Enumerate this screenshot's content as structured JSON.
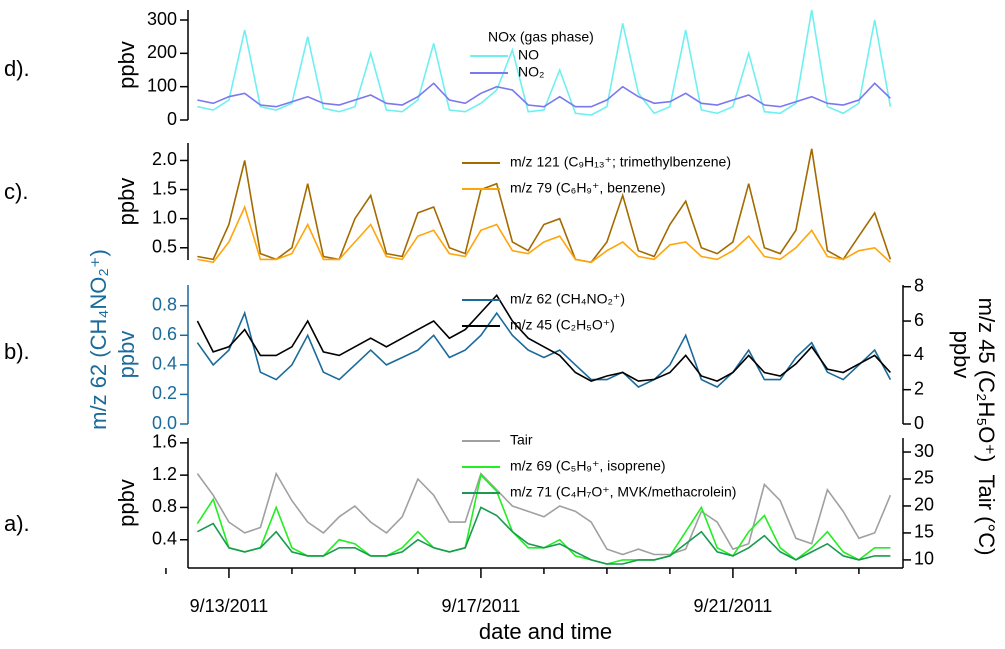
{
  "chart_data": [
    {
      "type": "line",
      "panel_label": "d).",
      "ylabel": "ppbv",
      "legend_title": "NOx (gas phase)",
      "x": [
        12.5,
        12.75,
        13,
        13.25,
        13.5,
        13.75,
        14,
        14.25,
        14.5,
        14.75,
        15,
        15.25,
        15.5,
        15.75,
        16,
        16.25,
        16.5,
        16.75,
        17,
        17.25,
        17.5,
        17.75,
        18,
        18.25,
        18.5,
        18.75,
        19,
        19.25,
        19.5,
        19.75,
        20,
        20.25,
        20.5,
        20.75,
        21,
        21.25,
        21.5,
        21.75,
        22,
        22.25,
        22.5,
        22.75,
        23,
        23.25,
        23.5
      ],
      "xlim": [
        12.35,
        23.7
      ],
      "ylim": [
        0,
        330
      ],
      "yticks": [
        0,
        100,
        200,
        300
      ],
      "series": [
        {
          "name": "NO",
          "color": "#6ff0f0",
          "values": [
            40,
            30,
            60,
            270,
            40,
            30,
            50,
            250,
            35,
            25,
            40,
            200,
            30,
            25,
            60,
            230,
            30,
            25,
            50,
            90,
            210,
            25,
            30,
            150,
            20,
            15,
            40,
            290,
            80,
            20,
            40,
            270,
            30,
            20,
            40,
            200,
            25,
            20,
            50,
            330,
            40,
            20,
            50,
            300,
            40
          ]
        },
        {
          "name": "NO₂",
          "color": "#7b78ee",
          "values": [
            60,
            50,
            70,
            80,
            45,
            40,
            55,
            70,
            50,
            45,
            60,
            75,
            50,
            45,
            70,
            110,
            60,
            50,
            80,
            100,
            90,
            45,
            40,
            70,
            40,
            40,
            60,
            100,
            70,
            50,
            55,
            80,
            50,
            45,
            60,
            75,
            45,
            40,
            55,
            70,
            50,
            45,
            60,
            110,
            65
          ]
        }
      ]
    },
    {
      "type": "line",
      "panel_label": "c).",
      "ylabel": "ppbv",
      "x": [
        12.5,
        12.75,
        13,
        13.25,
        13.5,
        13.75,
        14,
        14.25,
        14.5,
        14.75,
        15,
        15.25,
        15.5,
        15.75,
        16,
        16.25,
        16.5,
        16.75,
        17,
        17.25,
        17.5,
        17.75,
        18,
        18.25,
        18.5,
        18.75,
        19,
        19.25,
        19.5,
        19.75,
        20,
        20.25,
        20.5,
        20.75,
        21,
        21.25,
        21.5,
        21.75,
        22,
        22.25,
        22.5,
        22.75,
        23,
        23.25,
        23.5
      ],
      "xlim": [
        12.35,
        23.7
      ],
      "ylim": [
        0.29,
        2.3
      ],
      "yticks": [
        {
          "value": 0.5,
          "label": "0.5"
        },
        {
          "value": 1,
          "label": "1.0"
        },
        {
          "value": 1.5,
          "label": "1.5"
        },
        {
          "value": 2,
          "label": "2.0"
        }
      ],
      "series": [
        {
          "name": "m/z 121 (C₉H₁₃⁺; trimethylbenzene)",
          "color": "#a36a00",
          "values": [
            0.35,
            0.3,
            0.9,
            2.0,
            0.4,
            0.3,
            0.5,
            1.6,
            0.35,
            0.3,
            1.0,
            1.4,
            0.4,
            0.35,
            1.1,
            1.2,
            0.5,
            0.4,
            1.5,
            1.6,
            0.6,
            0.45,
            0.9,
            1.0,
            0.3,
            0.25,
            0.6,
            1.4,
            0.45,
            0.35,
            0.9,
            1.3,
            0.5,
            0.4,
            0.6,
            1.6,
            0.5,
            0.4,
            0.8,
            2.2,
            0.45,
            0.3,
            0.7,
            1.1,
            0.3
          ]
        },
        {
          "name": "m/z 79 (C₆H₉⁺, benzene)",
          "color": "#ffa50a",
          "values": [
            0.3,
            0.25,
            0.6,
            1.2,
            0.3,
            0.3,
            0.4,
            0.9,
            0.3,
            0.3,
            0.6,
            0.9,
            0.35,
            0.3,
            0.7,
            0.8,
            0.4,
            0.35,
            0.8,
            0.9,
            0.45,
            0.4,
            0.6,
            0.7,
            0.3,
            0.25,
            0.45,
            0.6,
            0.35,
            0.3,
            0.55,
            0.6,
            0.35,
            0.3,
            0.45,
            0.7,
            0.35,
            0.3,
            0.5,
            0.8,
            0.35,
            0.3,
            0.45,
            0.5,
            0.25
          ]
        }
      ]
    },
    {
      "type": "line",
      "panel_label": "b).",
      "ylabel": "ppbv",
      "ylabel2": "m/z 62 (CH₄NO₂⁺)",
      "y2label": "m/z 45 (C₂H₅O⁺)",
      "y2label2": "ppbv",
      "ycolor": "#1a6a9a",
      "x": [
        12.5,
        12.75,
        13,
        13.25,
        13.5,
        13.75,
        14,
        14.25,
        14.5,
        14.75,
        15,
        15.25,
        15.5,
        15.75,
        16,
        16.25,
        16.5,
        16.75,
        17,
        17.25,
        17.5,
        17.75,
        18,
        18.25,
        18.5,
        18.75,
        19,
        19.25,
        19.5,
        19.75,
        20,
        20.25,
        20.5,
        20.75,
        21,
        21.25,
        21.5,
        21.75,
        22,
        22.25,
        22.5,
        22.75,
        23,
        23.25,
        23.5
      ],
      "xlim": [
        12.35,
        23.7
      ],
      "ylim": [
        0,
        0.94
      ],
      "yticks": [
        {
          "value": 0,
          "label": "0.0"
        },
        0.2,
        0.4,
        0.6,
        0.8
      ],
      "y2lim": [
        0,
        8.1
      ],
      "y2ticks": [
        0,
        2,
        4,
        6,
        8
      ],
      "series": [
        {
          "name": "m/z 62 (CH₄NO₂⁺)",
          "color": "#1a6a9a",
          "values": [
            0.55,
            0.4,
            0.5,
            0.75,
            0.35,
            0.3,
            0.4,
            0.6,
            0.35,
            0.3,
            0.4,
            0.5,
            0.4,
            0.45,
            0.5,
            0.6,
            0.45,
            0.5,
            0.6,
            0.75,
            0.6,
            0.5,
            0.45,
            0.5,
            0.4,
            0.3,
            0.3,
            0.35,
            0.25,
            0.3,
            0.4,
            0.6,
            0.3,
            0.25,
            0.35,
            0.5,
            0.3,
            0.3,
            0.45,
            0.55,
            0.35,
            0.3,
            0.4,
            0.5,
            0.3
          ]
        },
        {
          "name": "m/z 45 (C₂H₅O⁺)",
          "color": "#000000",
          "axis": "y2",
          "values": [
            6,
            4.2,
            4.5,
            5.5,
            4,
            4,
            4.5,
            6,
            4.2,
            4,
            4.5,
            5,
            4.5,
            5,
            5.5,
            6,
            5,
            5.5,
            6.5,
            7.5,
            6,
            5,
            4.5,
            4,
            3,
            2.5,
            2.8,
            3,
            2.5,
            2.6,
            3,
            4,
            2.8,
            2.5,
            3,
            4,
            3,
            2.8,
            3.5,
            4.5,
            3.2,
            3,
            3.5,
            4,
            3
          ]
        }
      ]
    },
    {
      "type": "line",
      "panel_label": "a).",
      "ylabel": "ppbv",
      "y2label": "Tair (°C)",
      "xlabel": "date and time",
      "x": [
        12.5,
        12.75,
        13,
        13.25,
        13.5,
        13.75,
        14,
        14.25,
        14.5,
        14.75,
        15,
        15.25,
        15.5,
        15.75,
        16,
        16.25,
        16.5,
        16.75,
        17,
        17.25,
        17.5,
        17.75,
        18,
        18.25,
        18.5,
        18.75,
        19,
        19.25,
        19.5,
        19.75,
        20,
        20.25,
        20.5,
        20.75,
        21,
        21.25,
        21.5,
        21.75,
        22,
        22.25,
        22.5,
        22.75,
        23,
        23.25,
        23.5
      ],
      "xlim": [
        12.35,
        23.7
      ],
      "xticks": [
        {
          "value": 13,
          "label": "9/13/2011"
        },
        {
          "value": 17,
          "label": "9/17/2011"
        },
        {
          "value": 21,
          "label": "9/21/2011"
        }
      ],
      "xminorticks": [
        12,
        14,
        15,
        16,
        18,
        19,
        20,
        22,
        23
      ],
      "ylim": [
        0.05,
        1.66
      ],
      "yticks": [
        0.4,
        0.8,
        1.2,
        1.6
      ],
      "y2lim": [
        8.5,
        32.6
      ],
      "y2ticks": [
        10,
        15,
        20,
        25,
        30
      ],
      "series": [
        {
          "name": "Tair",
          "color": "#a0a0a0",
          "axis": "y2",
          "values": [
            26,
            22,
            17,
            15,
            16,
            26,
            21,
            17,
            15,
            18,
            20,
            17,
            15,
            18,
            25,
            22,
            17,
            17,
            26,
            23,
            20,
            19,
            18,
            20,
            19,
            17,
            12,
            11,
            12,
            11,
            11,
            12,
            19,
            17,
            12,
            13,
            24,
            21,
            14,
            13,
            23,
            19,
            14,
            15,
            22
          ]
        },
        {
          "name": "m/z 69 (C₅H₉⁺, isoprene)",
          "color": "#22ee22",
          "values": [
            0.6,
            0.9,
            0.3,
            0.25,
            0.3,
            0.8,
            0.3,
            0.2,
            0.2,
            0.4,
            0.35,
            0.2,
            0.2,
            0.3,
            0.5,
            0.3,
            0.25,
            0.3,
            1.2,
            1.0,
            0.5,
            0.3,
            0.3,
            0.4,
            0.2,
            0.15,
            0.1,
            0.15,
            0.15,
            0.15,
            0.2,
            0.5,
            0.8,
            0.3,
            0.2,
            0.5,
            0.7,
            0.3,
            0.15,
            0.3,
            0.5,
            0.25,
            0.15,
            0.3,
            0.3
          ]
        },
        {
          "name": "m/z 71 (C₄H₇O⁺, MVK/methacrolein)",
          "color": "#1a9a50",
          "values": [
            0.5,
            0.6,
            0.3,
            0.25,
            0.3,
            0.5,
            0.25,
            0.2,
            0.2,
            0.3,
            0.3,
            0.2,
            0.2,
            0.25,
            0.4,
            0.3,
            0.25,
            0.3,
            0.8,
            0.7,
            0.5,
            0.35,
            0.3,
            0.35,
            0.25,
            0.15,
            0.1,
            0.1,
            0.15,
            0.15,
            0.2,
            0.35,
            0.5,
            0.25,
            0.2,
            0.3,
            0.45,
            0.25,
            0.15,
            0.25,
            0.35,
            0.2,
            0.15,
            0.2,
            0.2
          ]
        }
      ]
    }
  ]
}
